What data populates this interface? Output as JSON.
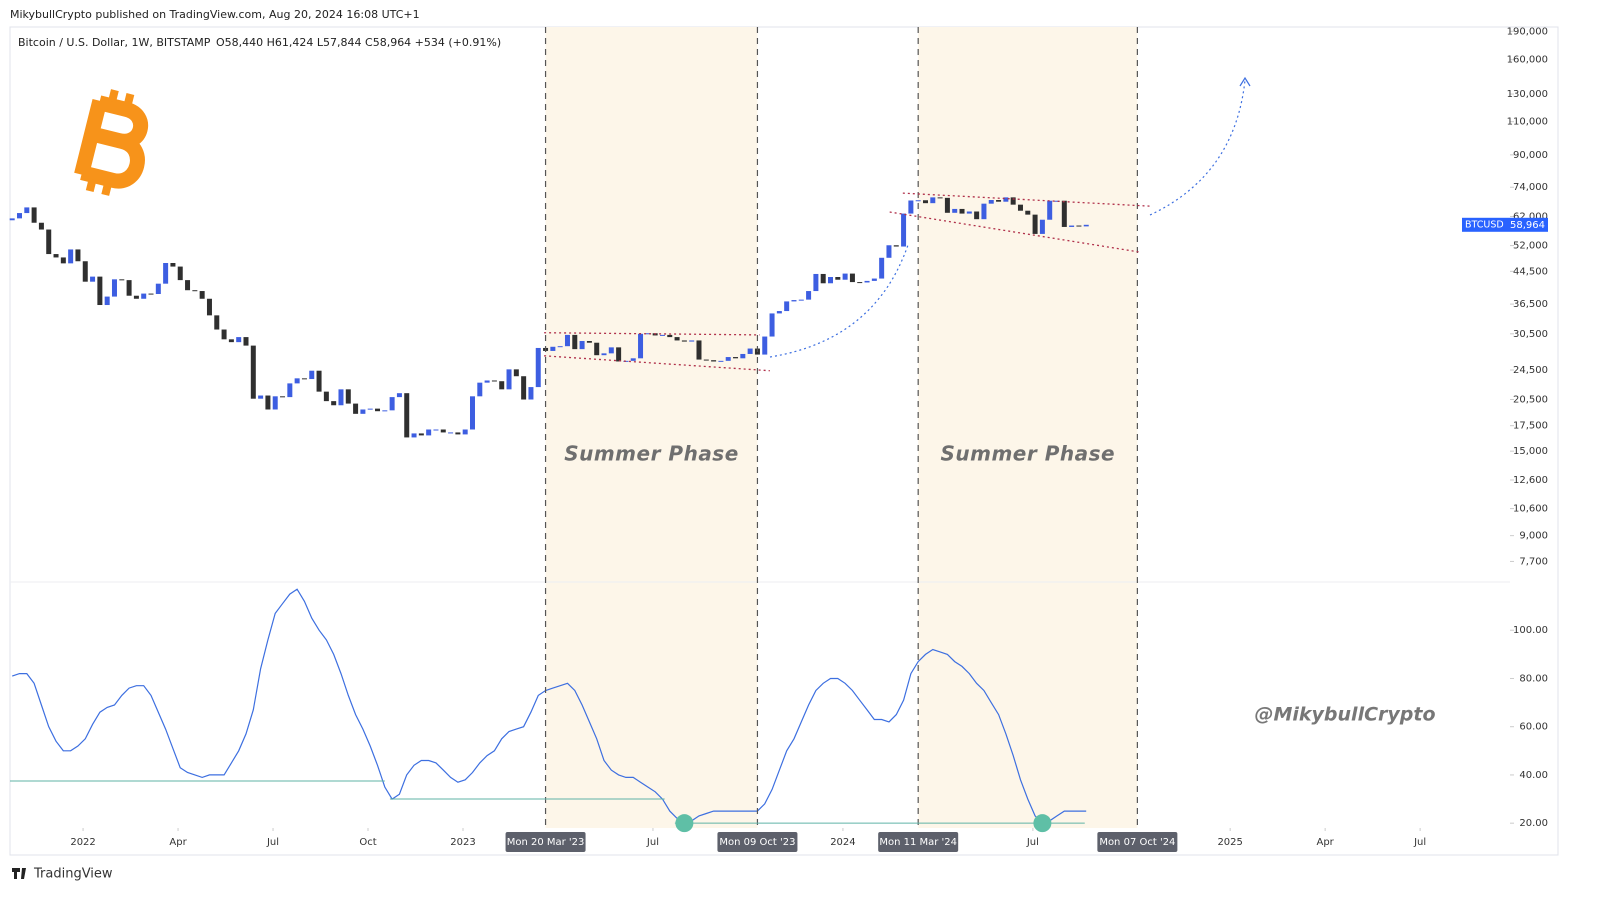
{
  "header": {
    "published": "MikybullCrypto published on TradingView.com, Aug 20, 2024 16:08 UTC+1"
  },
  "watermark": "@MikybullCrypto",
  "footer": {
    "brand": "TradingView"
  },
  "chart_data": {
    "type": "candlestick",
    "title": "Bitcoin / U.S. Dollar, 1W, BITSTAMP",
    "ohlc_text": "O58,440 H61,424 L57,844 C58,964 +534 (+0.91%)",
    "open": 60600,
    "closes": [
      61300,
      63300,
      65500,
      59700,
      57300,
      49400,
      48400,
      46700,
      50800,
      47300,
      41800,
      43100,
      36300,
      38200,
      42400,
      42200,
      38400,
      37700,
      38900,
      38800,
      41300,
      46800,
      45800,
      42200,
      39700,
      39500,
      37700,
      34100,
      31300,
      29500,
      29000,
      29900,
      28400,
      20600,
      21000,
      19300,
      20900,
      20800,
      22600,
      23300,
      23200,
      24400,
      21500,
      20300,
      19800,
      21800,
      20000,
      18800,
      19300,
      19400,
      19100,
      19200,
      20800,
      21300,
      16300,
      16700,
      16500,
      17100,
      17100,
      16800,
      16800,
      16600,
      17100,
      20900,
      22700,
      23000,
      22900,
      21800,
      24600,
      23600,
      20500,
      22100,
      28000,
      27500,
      28200,
      28300,
      30300,
      27800,
      29200,
      28900,
      26800,
      27100,
      28100,
      25800,
      25900,
      26300,
      30500,
      30600,
      30200,
      30300,
      29900,
      29300,
      29100,
      29300,
      26100,
      26000,
      25800,
      25900,
      26500,
      26300,
      27000,
      27900,
      26900,
      30000,
      34500,
      35000,
      37100,
      37400,
      37500,
      39500,
      43800,
      41400,
      43000,
      42300,
      43900,
      41700,
      41600,
      42000,
      42600,
      48300,
      52100,
      51700,
      63100,
      68300,
      68400,
      67200,
      69600,
      69400,
      63400,
      64900,
      63100,
      63900,
      61000,
      67000,
      68500,
      67800,
      69600,
      66600,
      64200,
      62700,
      55800,
      60800,
      68200,
      68200,
      58200,
      58700,
      58400,
      58964
    ],
    "up_color": "#3d5ee1",
    "down_color": "#2f2f2f",
    "log_scale": true,
    "xlim": [
      -0.3,
      205
    ],
    "xticks": [
      {
        "value": 9.7,
        "label": "2022"
      },
      {
        "value": 22.7,
        "label": "Apr"
      },
      {
        "value": 35.7,
        "label": "Jul"
      },
      {
        "value": 48.7,
        "label": "Oct"
      },
      {
        "value": 61.7,
        "label": "2023"
      },
      {
        "value": 87.7,
        "label": "Jul"
      },
      {
        "value": 113.7,
        "label": "2024"
      },
      {
        "value": 139.7,
        "label": "Jul"
      },
      {
        "value": 166.7,
        "label": "2025"
      },
      {
        "value": 179.7,
        "label": "Apr"
      },
      {
        "value": 192.7,
        "label": "Jul"
      }
    ],
    "ylim": [
      6800,
      195000
    ],
    "yticks": [
      {
        "value": 190000,
        "label": "190,000"
      },
      {
        "value": 160000,
        "label": "160,000"
      },
      {
        "value": 130000,
        "label": "130,000"
      },
      {
        "value": 110000,
        "label": "110,000"
      },
      {
        "value": 90000,
        "label": "90,000"
      },
      {
        "value": 74000,
        "label": "74,000"
      },
      {
        "value": 62000,
        "label": "62,000"
      },
      {
        "value": 52000,
        "label": "52,000"
      },
      {
        "value": 44500,
        "label": "44,500"
      },
      {
        "value": 36500,
        "label": "36,500"
      },
      {
        "value": 30500,
        "label": "30,500"
      },
      {
        "value": 24500,
        "label": "24,500"
      },
      {
        "value": 20500,
        "label": "20,500"
      },
      {
        "value": 17500,
        "label": "17,500"
      },
      {
        "value": 15000,
        "label": "15,000"
      },
      {
        "value": 12600,
        "label": "12,600"
      },
      {
        "value": 10600,
        "label": "10,600"
      },
      {
        "value": 9000,
        "label": "9,000"
      },
      {
        "value": 7700,
        "label": "7,700"
      }
    ],
    "last_price": {
      "symbol": "BTCUSD",
      "value": 58964,
      "label": "58,964",
      "color": "#2962ff"
    },
    "phase_color": "#fdf6e9",
    "phases": [
      {
        "label": "Summer Phase",
        "start": {
          "value": 73,
          "label": "Mon 20 Mar '23"
        },
        "end": {
          "value": 102,
          "label": "Mon 09 Oct '23"
        }
      },
      {
        "label": "Summer Phase",
        "start": {
          "value": 124,
          "label": "Mon 11 Mar '24"
        },
        "end": {
          "value": 154,
          "label": "Mon 07 Oct '24"
        }
      }
    ],
    "trendline_color": "#b0304a",
    "trendlines": [
      {
        "x": [
          72.8,
          102.3
        ],
        "y": [
          30700,
          30300
        ]
      },
      {
        "x": [
          72.8,
          103.7
        ],
        "y": [
          26700,
          24400
        ]
      },
      {
        "x": [
          121.9,
          155.7
        ],
        "y": [
          71400,
          66000
        ]
      },
      {
        "x": [
          120.1,
          154.3
        ],
        "y": [
          63700,
          50000
        ]
      }
    ],
    "indicator": {
      "type": "line",
      "color": "#3d6fe0",
      "values": [
        81,
        82,
        82,
        78,
        69,
        60,
        54,
        50,
        50,
        52,
        55,
        61,
        66,
        68,
        69,
        73,
        76,
        77,
        77,
        73,
        66,
        59,
        51,
        43,
        41,
        40,
        39,
        40,
        40,
        40,
        45,
        50,
        57,
        67,
        84,
        96,
        107,
        111,
        115,
        117,
        112,
        105,
        100,
        96,
        90,
        82,
        73,
        65,
        59,
        52,
        44,
        35,
        30,
        32,
        40,
        44,
        46,
        46,
        45,
        42,
        39,
        37,
        38,
        41,
        45,
        48,
        50,
        55,
        58,
        59,
        60,
        66,
        73,
        75,
        76,
        77,
        78,
        75,
        69,
        62,
        55,
        46,
        42,
        40,
        39,
        39,
        37,
        35,
        33,
        30,
        25,
        22,
        20,
        21,
        23,
        24,
        25,
        25,
        25,
        25,
        25,
        25,
        25,
        28,
        34,
        42,
        50,
        55,
        62,
        69,
        75,
        78,
        80,
        80,
        78,
        75,
        71,
        67,
        63,
        63,
        62,
        65,
        71,
        82,
        87,
        90,
        92,
        91,
        90,
        87,
        85,
        82,
        78,
        75,
        70,
        65,
        57,
        48,
        38,
        30,
        23,
        20,
        21,
        23,
        25,
        25,
        25,
        25
      ],
      "ylim": [
        18,
        120
      ],
      "yticks": [
        {
          "value": 100,
          "label": "100.00"
        },
        {
          "value": 80,
          "label": "80.00"
        },
        {
          "value": 60,
          "label": "60.00"
        },
        {
          "value": 40,
          "label": "40.00"
        },
        {
          "value": 20,
          "label": "20.00"
        }
      ],
      "level_color": "#5fb3a6",
      "levels": [
        {
          "value": 37.5,
          "x": [
            -0.3,
            51
          ]
        },
        {
          "value": 30,
          "x": [
            51.7,
            89.3
          ]
        },
        {
          "value": 20,
          "x": [
            90.7,
            146.8
          ]
        }
      ],
      "markers": [
        {
          "x": 92,
          "y": 20
        },
        {
          "x": 141,
          "y": 20
        }
      ]
    }
  }
}
